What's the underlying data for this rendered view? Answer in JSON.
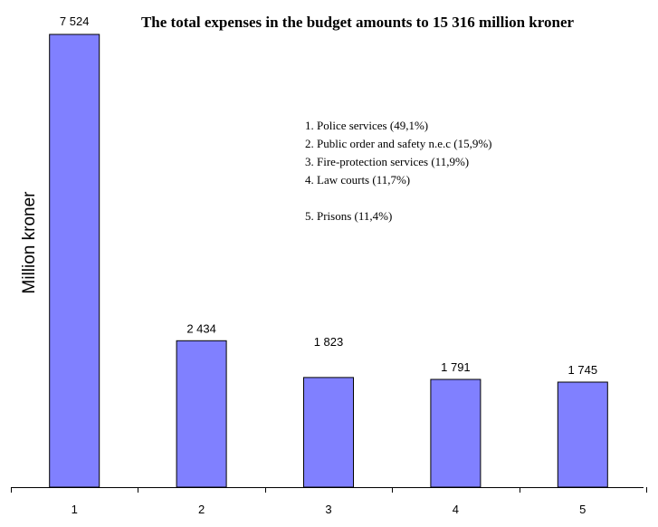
{
  "chart_data": {
    "type": "bar",
    "title": "The total expenses in the budget amounts to 15 316 million kroner",
    "xlabel": "",
    "ylabel": "Million kroner",
    "categories": [
      "1",
      "2",
      "3",
      "4",
      "5"
    ],
    "values": [
      7524,
      2434,
      1823,
      1791,
      1745
    ],
    "value_labels": [
      "7 524",
      "2 434",
      "1 823",
      "1 791",
      "1 745"
    ],
    "ylim": [
      0,
      7524
    ],
    "grid": false,
    "legend_position": "top-center",
    "legend_items": [
      "1. Police services (49,1%)",
      "2. Public order and safety n.e.c (15,9%)",
      "3. Fire-protection services (11,9%)",
      "4. Law courts (11,7%)",
      "5. Prisons (11,4%)"
    ]
  },
  "colors": {
    "bar_fill": "#8080ff",
    "bar_stroke": "#000000",
    "background": "#ffffff"
  }
}
